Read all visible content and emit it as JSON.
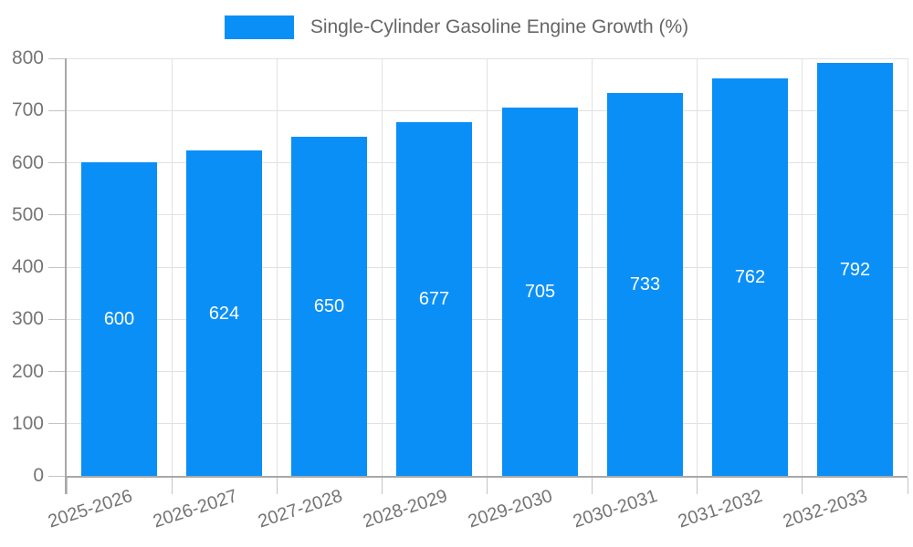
{
  "legend": {
    "label": "Single-Cylinder Gasoline Engine Growth (%)",
    "swatch_color": "#0a8ff7"
  },
  "chart_data": {
    "type": "bar",
    "title": "Single-Cylinder Gasoline Engine Growth (%)",
    "categories": [
      "2025-2026",
      "2026-2027",
      "2027-2028",
      "2028-2029",
      "2029-2030",
      "2030-2031",
      "2031-2032",
      "2032-2033"
    ],
    "values": [
      600,
      624,
      650,
      677,
      705,
      733,
      762,
      792
    ],
    "xlabel": "",
    "ylabel": "",
    "ylim": [
      0,
      800
    ],
    "ytick_step": 100,
    "ytick_labels": [
      "0",
      "100",
      "200",
      "300",
      "400",
      "500",
      "600",
      "700",
      "800"
    ],
    "grid": true,
    "legend_position": "top-center",
    "x_label_rotation_deg": -18,
    "colors": {
      "bar": "#0a8ff7",
      "value_label": "#ffffff",
      "axis_line": "#a8a8a8",
      "tick": "#c4c4c4",
      "gridline": "#e2e2e2",
      "axis_label": "#757575",
      "legend_text": "#666666",
      "background": "#ffffff"
    }
  }
}
